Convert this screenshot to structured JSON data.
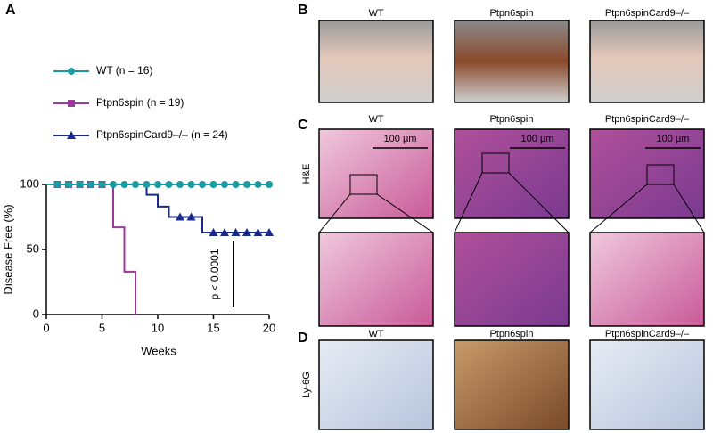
{
  "chart_data": {
    "type": "step",
    "panel_label": "A",
    "xlabel": "Weeks",
    "ylabel": "Disease Free (%)",
    "xlim": [
      0,
      20
    ],
    "xticks": [
      0,
      5,
      10,
      15,
      20
    ],
    "ylim": [
      0,
      100
    ],
    "yticks": [
      0,
      50,
      100
    ],
    "annotation": "p < 0.0001",
    "series": [
      {
        "name": "WT (n = 16)",
        "color": "#1a9ba1",
        "marker": "circle",
        "x": [
          0,
          20
        ],
        "values": [
          100,
          100
        ],
        "censor_x": [
          1,
          2,
          3,
          4,
          5,
          6,
          7,
          8,
          9,
          10,
          11,
          12,
          13,
          14,
          15,
          16,
          17,
          18,
          19,
          20
        ],
        "censor_values": [
          100,
          100,
          100,
          100,
          100,
          100,
          100,
          100,
          100,
          100,
          100,
          100,
          100,
          100,
          100,
          100,
          100,
          100,
          100,
          100
        ]
      },
      {
        "name": "Ptpn6spin (n = 19)",
        "color": "#9b3a9b",
        "marker": "square",
        "x": [
          0,
          6,
          7,
          8
        ],
        "values": [
          100,
          67,
          33,
          0
        ],
        "censor_x": [
          1,
          2,
          3,
          4,
          5
        ],
        "censor_values": [
          100,
          100,
          100,
          100,
          100
        ]
      },
      {
        "name": "Ptpn6spinCard9–/– (n = 24)",
        "color": "#1a2a8c",
        "marker": "triangle",
        "x": [
          0,
          9,
          10,
          11,
          14,
          20
        ],
        "values": [
          100,
          92,
          83,
          75,
          63,
          63
        ],
        "censor_x": [
          12,
          13,
          15,
          16,
          17,
          18,
          19,
          20
        ],
        "censor_values": [
          75,
          75,
          63,
          63,
          63,
          63,
          63,
          63
        ]
      }
    ]
  },
  "figure": {
    "B": {
      "label": "B",
      "columns": [
        "WT",
        "Ptpn6spin",
        "Ptpn6spinCard9–/–"
      ]
    },
    "C": {
      "label": "C",
      "columns": [
        "WT",
        "Ptpn6spin",
        "Ptpn6spinCard9–/–"
      ],
      "row_label": "H&E",
      "scale_bars": [
        "100 μm",
        "100 μm",
        "100 μm"
      ]
    },
    "D": {
      "label": "D",
      "columns": [
        "WT",
        "Ptpn6spin",
        "Ptpn6spinCard9–/–"
      ],
      "row_label": "Ly-6G"
    }
  }
}
